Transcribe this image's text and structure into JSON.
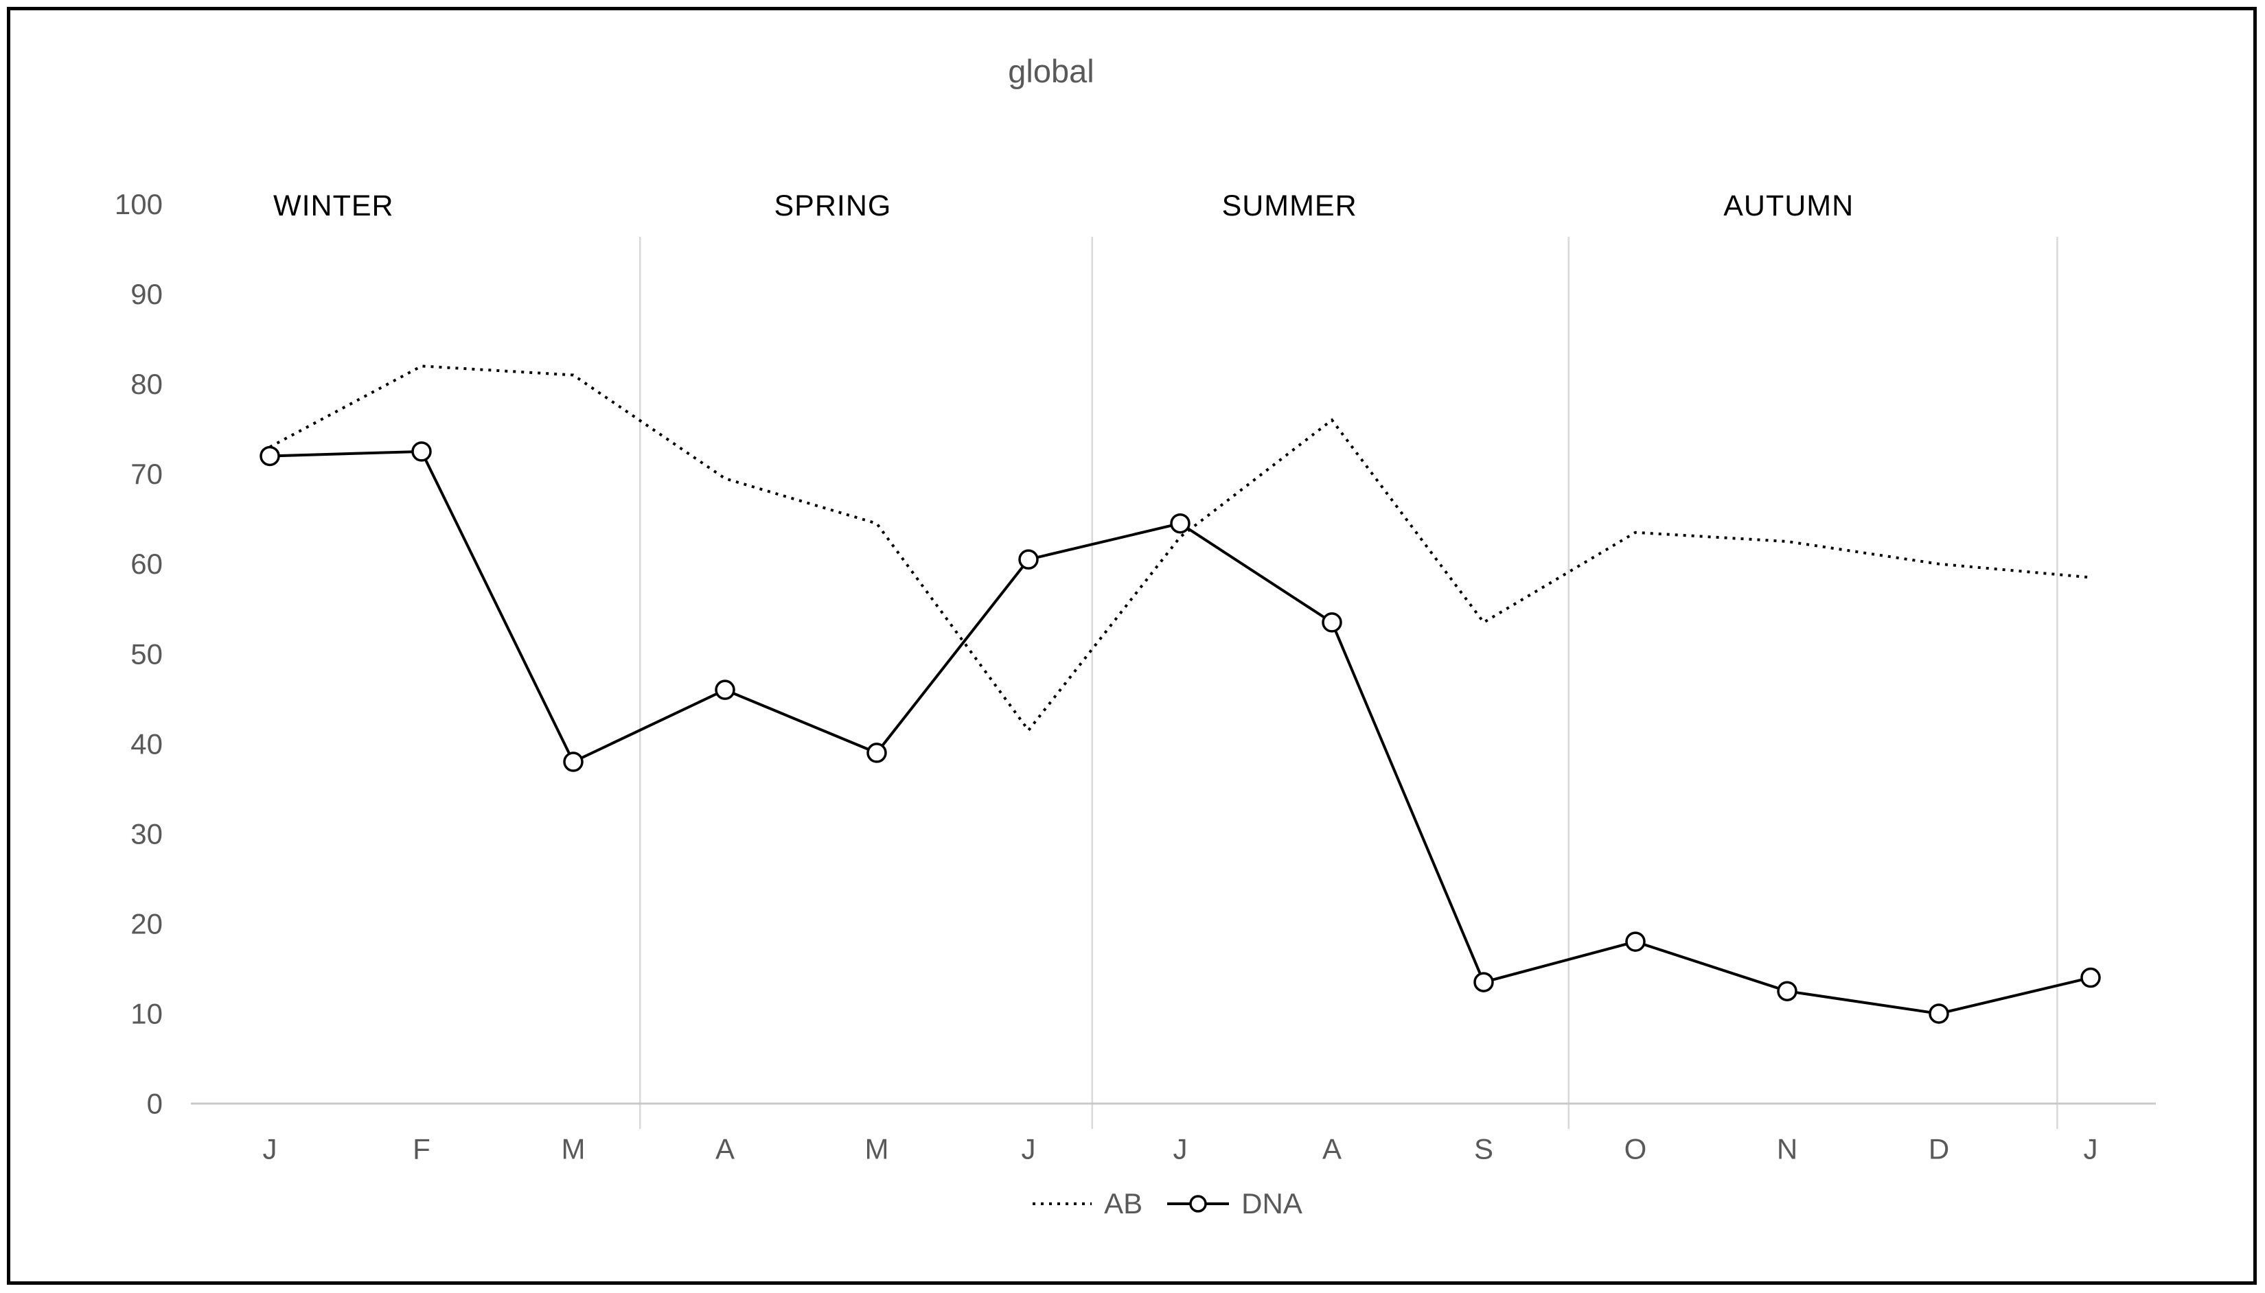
{
  "title": "global",
  "colors": {
    "series_line": "#000000",
    "axis_text": "#595959",
    "season_text": "#000000",
    "season_divider": "#d9d9d9",
    "axis_line": "#c9c9c9",
    "marker_fill": "#ffffff"
  },
  "legend": {
    "ab_label": "AB",
    "dna_label": "DNA"
  },
  "chart_data": {
    "type": "line",
    "title": "global",
    "categories": [
      "J",
      "F",
      "M",
      "A",
      "M",
      "J",
      "J",
      "A",
      "S",
      "O",
      "N",
      "D",
      "J"
    ],
    "y_ticks": [
      0,
      10,
      20,
      30,
      40,
      50,
      60,
      70,
      80,
      90,
      100
    ],
    "ylim": [
      0,
      100
    ],
    "grid": "vertical season dividers only",
    "legend_position": "bottom-center",
    "season_labels": [
      {
        "text": "WINTER",
        "x_index": 0.42
      },
      {
        "text": "SPRING",
        "x_index": 3.71
      },
      {
        "text": "SUMMER",
        "x_index": 6.72
      },
      {
        "text": "AUTUMN",
        "x_index": 10.01
      }
    ],
    "season_divider_positions": [
      2.44,
      5.42,
      8.56,
      11.78
    ],
    "series": [
      {
        "name": "AB",
        "line_style": "dotted",
        "marker": "none",
        "color": "#000000",
        "values": [
          73,
          82,
          81,
          69.5,
          64.5,
          41.5,
          63,
          76,
          53.5,
          63.5,
          62.5,
          60,
          58.5
        ]
      },
      {
        "name": "DNA",
        "line_style": "solid",
        "marker": "open-circle",
        "color": "#000000",
        "values": [
          72,
          72.5,
          38,
          46,
          39,
          60.5,
          64.5,
          53.5,
          13.5,
          18,
          12.5,
          10,
          14
        ]
      }
    ]
  }
}
